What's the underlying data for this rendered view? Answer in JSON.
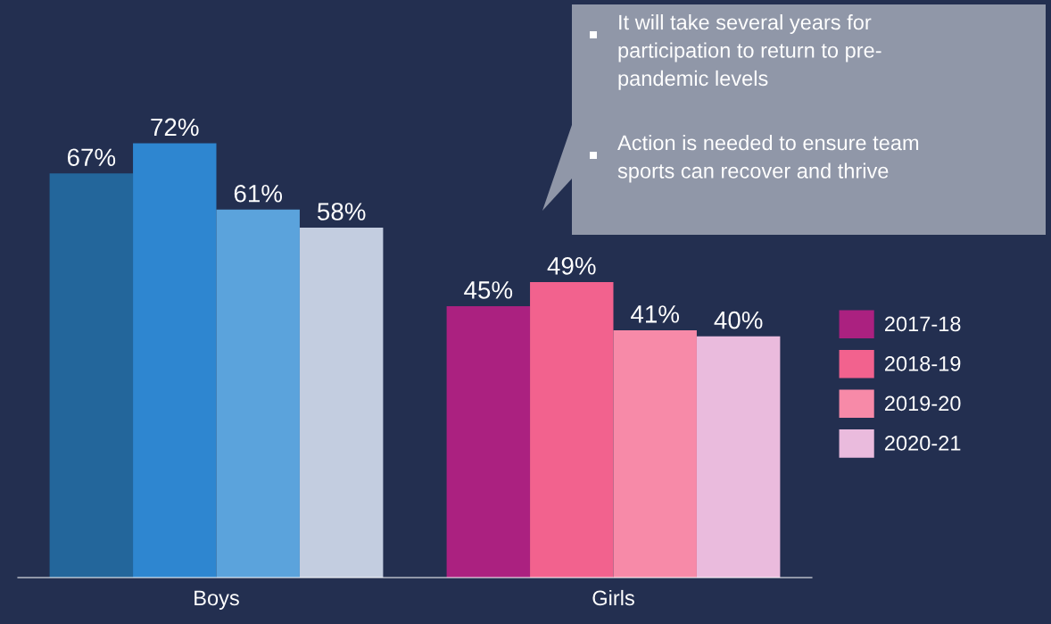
{
  "chart_data": {
    "type": "bar",
    "categories": [
      "Boys",
      "Girls"
    ],
    "series": [
      {
        "name": "2017-18",
        "colors": [
          "#23669b",
          "#ab2180"
        ],
        "values": [
          67,
          45
        ],
        "value_labels": [
          "67%",
          "45%"
        ]
      },
      {
        "name": "2018-19",
        "colors": [
          "#2e86d0",
          "#f2628e"
        ],
        "values": [
          72,
          49
        ],
        "value_labels": [
          "72%",
          "49%"
        ]
      },
      {
        "name": "2019-20",
        "colors": [
          "#5ba3dc",
          "#f78aa8"
        ],
        "values": [
          61,
          41
        ],
        "value_labels": [
          "61%",
          "41%"
        ]
      },
      {
        "name": "2020-21",
        "colors": [
          "#c3cde0",
          "#eabbdd"
        ],
        "values": [
          58,
          40
        ],
        "value_labels": [
          "58%",
          "40%"
        ]
      }
    ],
    "legend": "right",
    "grid": false,
    "annotations": [
      "It will take several years for\nparticipation to return to pre-\npandemic levels",
      "Action is needed to ensure team\nsports can recover and thrive"
    ]
  }
}
